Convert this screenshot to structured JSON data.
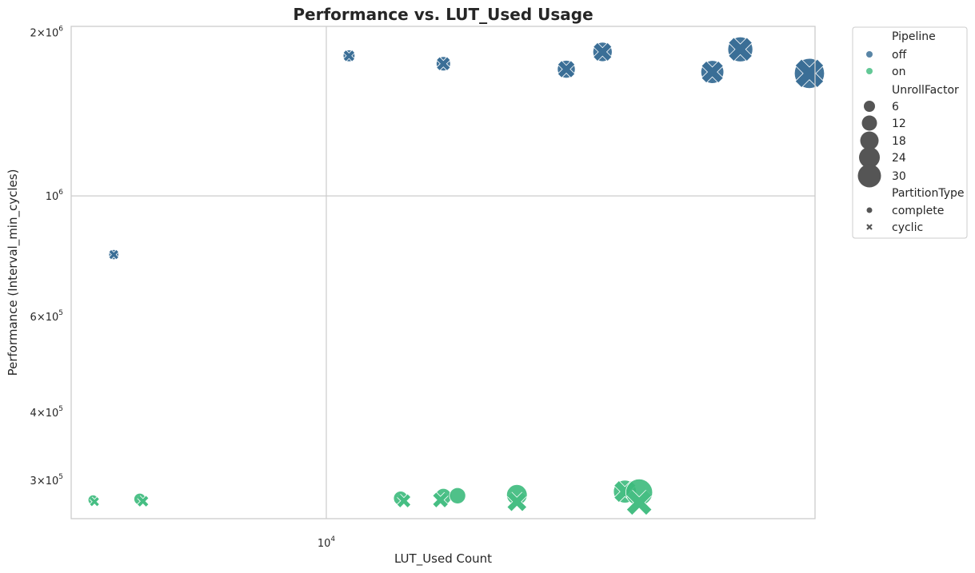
{
  "chart_data": {
    "type": "scatter",
    "title": "Performance vs. LUT_Used Usage",
    "xlabel": "LUT_Used Count",
    "ylabel": "Performance (Interval_min_cycles)",
    "x_scale": "log",
    "y_scale": "log",
    "xlim": [
      5200,
      35000
    ],
    "ylim": [
      255000,
      2050000
    ],
    "grid": true,
    "x_ticks": [
      {
        "value": 10000,
        "base": "10",
        "exp": "4",
        "mult": ""
      }
    ],
    "y_ticks": [
      {
        "value": 2000000,
        "mult": "2×",
        "base": "10",
        "exp": "6"
      },
      {
        "value": 1000000,
        "mult": "",
        "base": "10",
        "exp": "6"
      },
      {
        "value": 600000,
        "mult": "6×",
        "base": "10",
        "exp": "5"
      },
      {
        "value": 400000,
        "mult": "4×",
        "base": "10",
        "exp": "5"
      },
      {
        "value": 300000,
        "mult": "3×",
        "base": "10",
        "exp": "5"
      }
    ],
    "colors": {
      "off": "#2f6690",
      "on": "#3cba7c"
    },
    "legend": {
      "placement": "outside-right",
      "pipeline_title": "Pipeline",
      "pipeline_items": [
        "off",
        "on"
      ],
      "unroll_title": "UnrollFactor",
      "unroll_items": [
        "6",
        "12",
        "18",
        "24",
        "30"
      ],
      "partition_title": "PartitionType",
      "partition_items": [
        "complete",
        "cyclic"
      ]
    },
    "points": [
      {
        "x": 5800,
        "y": 780000,
        "pipeline": "off",
        "unroll": 1,
        "partition": "complete"
      },
      {
        "x": 5800,
        "y": 780000,
        "pipeline": "off",
        "unroll": 1,
        "partition": "cyclic"
      },
      {
        "x": 10600,
        "y": 1810000,
        "pipeline": "off",
        "unroll": 2,
        "partition": "complete"
      },
      {
        "x": 10600,
        "y": 1810000,
        "pipeline": "off",
        "unroll": 2,
        "partition": "cyclic"
      },
      {
        "x": 13500,
        "y": 1750000,
        "pipeline": "off",
        "unroll": 4,
        "partition": "complete"
      },
      {
        "x": 13500,
        "y": 1750000,
        "pipeline": "off",
        "unroll": 4,
        "partition": "cyclic"
      },
      {
        "x": 18500,
        "y": 1710000,
        "pipeline": "off",
        "unroll": 8,
        "partition": "complete"
      },
      {
        "x": 18500,
        "y": 1710000,
        "pipeline": "off",
        "unroll": 8,
        "partition": "cyclic"
      },
      {
        "x": 20300,
        "y": 1840000,
        "pipeline": "off",
        "unroll": 10,
        "partition": "complete"
      },
      {
        "x": 20300,
        "y": 1840000,
        "pipeline": "off",
        "unroll": 10,
        "partition": "cyclic"
      },
      {
        "x": 26900,
        "y": 1690000,
        "pipeline": "off",
        "unroll": 16,
        "partition": "complete"
      },
      {
        "x": 26900,
        "y": 1690000,
        "pipeline": "off",
        "unroll": 16,
        "partition": "cyclic"
      },
      {
        "x": 28900,
        "y": 1860000,
        "pipeline": "off",
        "unroll": 20,
        "partition": "complete"
      },
      {
        "x": 28900,
        "y": 1860000,
        "pipeline": "off",
        "unroll": 20,
        "partition": "cyclic"
      },
      {
        "x": 34500,
        "y": 1680000,
        "pipeline": "off",
        "unroll": 32,
        "partition": "complete"
      },
      {
        "x": 34500,
        "y": 1680000,
        "pipeline": "off",
        "unroll": 32,
        "partition": "cyclic"
      },
      {
        "x": 5500,
        "y": 276000,
        "pipeline": "on",
        "unroll": 1,
        "partition": "complete"
      },
      {
        "x": 5520,
        "y": 274000,
        "pipeline": "on",
        "unroll": 1,
        "partition": "cyclic"
      },
      {
        "x": 6200,
        "y": 277000,
        "pipeline": "on",
        "unroll": 2,
        "partition": "complete"
      },
      {
        "x": 6250,
        "y": 274500,
        "pipeline": "on",
        "unroll": 2,
        "partition": "cyclic"
      },
      {
        "x": 12100,
        "y": 278000,
        "pipeline": "on",
        "unroll": 4,
        "partition": "complete"
      },
      {
        "x": 12200,
        "y": 275000,
        "pipeline": "on",
        "unroll": 4,
        "partition": "cyclic"
      },
      {
        "x": 13500,
        "y": 280000,
        "pipeline": "on",
        "unroll": 6,
        "partition": "complete"
      },
      {
        "x": 13400,
        "y": 276000,
        "pipeline": "on",
        "unroll": 6,
        "partition": "cyclic"
      },
      {
        "x": 14000,
        "y": 281000,
        "pipeline": "on",
        "unroll": 6,
        "partition": "complete"
      },
      {
        "x": 16300,
        "y": 282000,
        "pipeline": "on",
        "unroll": 12,
        "partition": "complete"
      },
      {
        "x": 16300,
        "y": 274000,
        "pipeline": "on",
        "unroll": 12,
        "partition": "cyclic"
      },
      {
        "x": 21500,
        "y": 286000,
        "pipeline": "on",
        "unroll": 16,
        "partition": "complete"
      },
      {
        "x": 21500,
        "y": 286000,
        "pipeline": "on",
        "unroll": 16,
        "partition": "cyclic"
      },
      {
        "x": 22300,
        "y": 285000,
        "pipeline": "on",
        "unroll": 24,
        "partition": "complete"
      },
      {
        "x": 22300,
        "y": 273000,
        "pipeline": "on",
        "unroll": 24,
        "partition": "cyclic"
      }
    ]
  }
}
